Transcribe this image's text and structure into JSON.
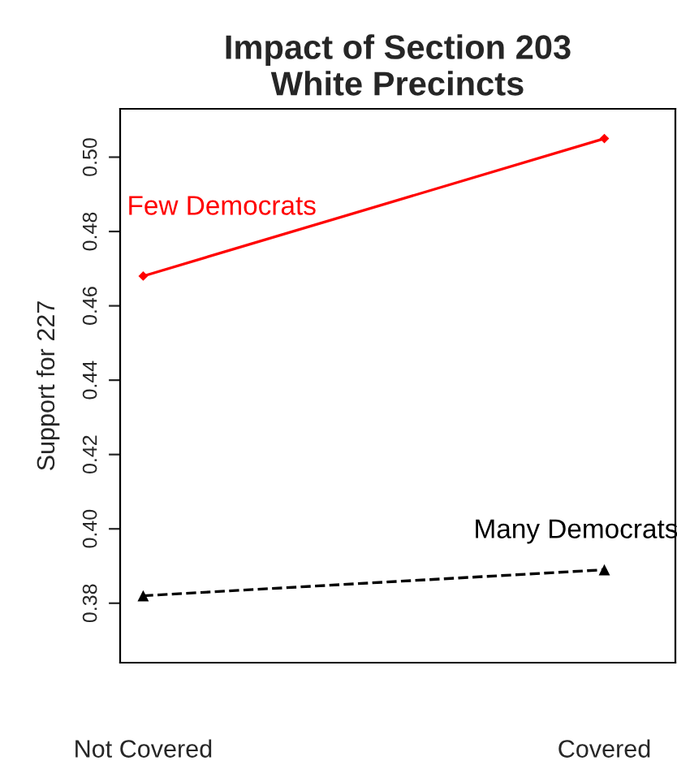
{
  "chart_data": {
    "type": "line",
    "title": "Impact of Section 203\nWhite Precincts",
    "ylabel": "Support for 227",
    "categories": [
      "Not Covered",
      "Covered"
    ],
    "series": [
      {
        "name": "Few Democrats",
        "color": "#ff0000",
        "values": [
          0.468,
          0.505
        ],
        "marker": "diamond",
        "line_style": "solid"
      },
      {
        "name": "Many Democrats",
        "color": "#000000",
        "values": [
          0.382,
          0.389
        ],
        "marker": "triangle",
        "line_style": "dashed"
      }
    ],
    "ylim": [
      0.364,
      0.513
    ],
    "yticks": [
      0.38,
      {
        "value": 0.4,
        "label": "0.40"
      },
      0.42,
      0.44,
      0.46,
      0.48,
      {
        "value": 0.5,
        "label": "0.50"
      }
    ],
    "grid": false,
    "legend": false
  }
}
